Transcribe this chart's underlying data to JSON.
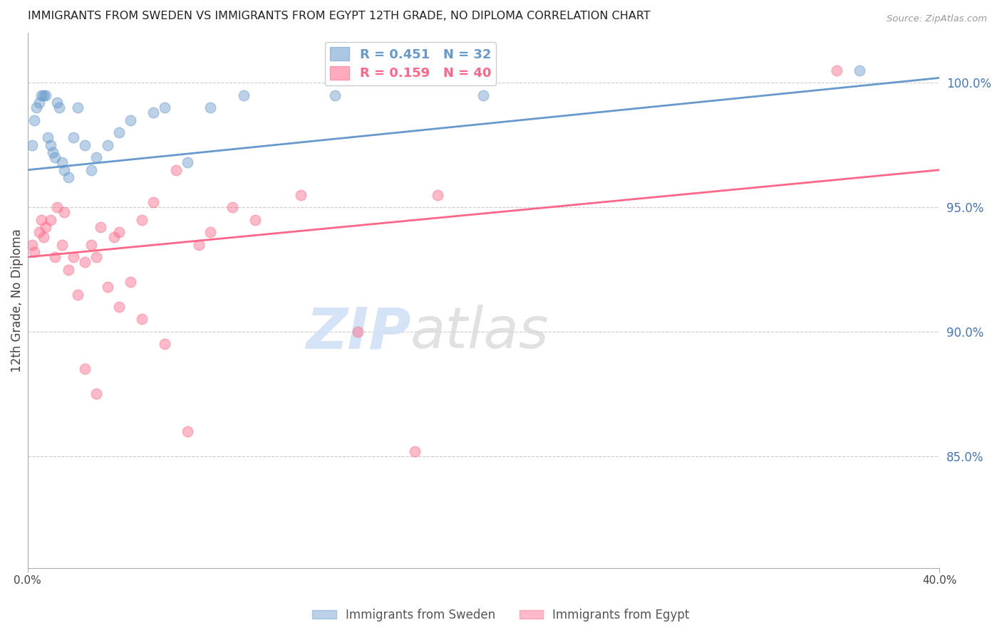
{
  "title": "IMMIGRANTS FROM SWEDEN VS IMMIGRANTS FROM EGYPT 12TH GRADE, NO DIPLOMA CORRELATION CHART",
  "source": "Source: ZipAtlas.com",
  "ylabel": "12th Grade, No Diploma",
  "right_yticks": [
    85.0,
    90.0,
    95.0,
    100.0
  ],
  "xlim": [
    0.0,
    40.0
  ],
  "ylim": [
    80.5,
    102.0
  ],
  "sweden_color": "#6699cc",
  "egypt_color": "#ff6688",
  "sweden_R": 0.451,
  "sweden_N": 32,
  "egypt_R": 0.159,
  "egypt_N": 40,
  "sweden_scatter_x": [
    0.2,
    0.3,
    0.4,
    0.5,
    0.6,
    0.7,
    0.8,
    0.9,
    1.0,
    1.1,
    1.2,
    1.3,
    1.4,
    1.5,
    1.6,
    1.8,
    2.0,
    2.2,
    2.5,
    2.8,
    3.0,
    3.5,
    4.0,
    4.5,
    5.5,
    6.0,
    7.0,
    8.0,
    9.5,
    13.5,
    20.0,
    36.5
  ],
  "sweden_scatter_y": [
    97.5,
    98.5,
    99.0,
    99.2,
    99.5,
    99.5,
    99.5,
    97.8,
    97.5,
    97.2,
    97.0,
    99.2,
    99.0,
    96.8,
    96.5,
    96.2,
    97.8,
    99.0,
    97.5,
    96.5,
    97.0,
    97.5,
    98.0,
    98.5,
    98.8,
    99.0,
    96.8,
    99.0,
    99.5,
    99.5,
    99.5,
    100.5
  ],
  "egypt_scatter_x": [
    0.2,
    0.3,
    0.5,
    0.6,
    0.7,
    0.8,
    1.0,
    1.2,
    1.3,
    1.5,
    1.6,
    1.8,
    2.0,
    2.2,
    2.5,
    2.8,
    3.0,
    3.2,
    3.5,
    3.8,
    4.0,
    4.5,
    5.0,
    5.5,
    6.5,
    7.5,
    8.0,
    9.0,
    10.0,
    12.0,
    14.5,
    18.0,
    2.5,
    3.0,
    4.0,
    5.0,
    6.0,
    7.0,
    17.0,
    35.5
  ],
  "egypt_scatter_y": [
    93.5,
    93.2,
    94.0,
    94.5,
    93.8,
    94.2,
    94.5,
    93.0,
    95.0,
    93.5,
    94.8,
    92.5,
    93.0,
    91.5,
    92.8,
    93.5,
    93.0,
    94.2,
    91.8,
    93.8,
    94.0,
    92.0,
    94.5,
    95.2,
    96.5,
    93.5,
    94.0,
    95.0,
    94.5,
    95.5,
    90.0,
    95.5,
    88.5,
    87.5,
    91.0,
    90.5,
    89.5,
    86.0,
    85.2,
    100.5
  ],
  "sweden_line_x": [
    0.0,
    40.0
  ],
  "sweden_line_y": [
    96.5,
    100.2
  ],
  "egypt_line_x": [
    0.0,
    40.0
  ],
  "egypt_line_y": [
    93.0,
    96.5
  ],
  "background_color": "#ffffff",
  "grid_color": "#cccccc",
  "title_color": "#222222",
  "right_axis_color": "#4477bb",
  "legend_sweden_label": "Immigrants from Sweden",
  "legend_egypt_label": "Immigrants from Egypt",
  "watermark_zip": "ZIP",
  "watermark_atlas": "atlas"
}
